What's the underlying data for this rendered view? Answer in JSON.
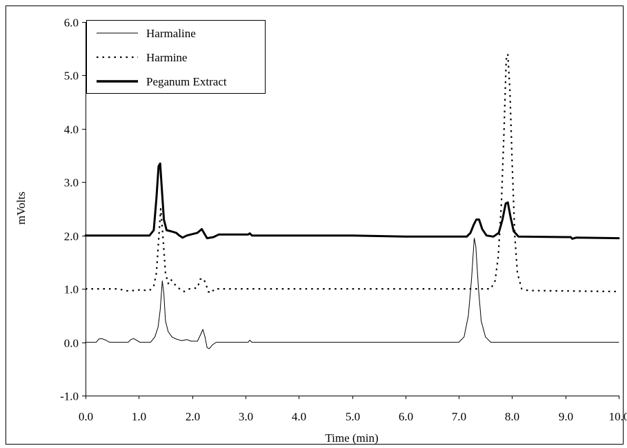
{
  "chart_data": {
    "type": "line",
    "title": "",
    "xlabel": "Time (min)",
    "ylabel": "mVolts",
    "xlim": [
      0.0,
      10.0
    ],
    "ylim": [
      -1.0,
      6.0
    ],
    "xticks": [
      0,
      1,
      2,
      3,
      4,
      5,
      6,
      7,
      8,
      9,
      10
    ],
    "xtick_labels": [
      "0.0",
      "1.0",
      "2.0",
      "3.0",
      "4.0",
      "5.0",
      "6.0",
      "7.0",
      "8.0",
      "9.0",
      "10.0"
    ],
    "yticks": [
      -1,
      0,
      1,
      2,
      3,
      4,
      5,
      6
    ],
    "ytick_labels": [
      "-1.0",
      "0.0",
      "1.0",
      "2.0",
      "3.0",
      "4.0",
      "5.0",
      "6.0"
    ],
    "grid": false,
    "legend_position": "top-left",
    "series": [
      {
        "name": "Harmaline",
        "style": "solid-thin",
        "color": "#000000",
        "points": [
          [
            0.0,
            0.0
          ],
          [
            0.2,
            0.0
          ],
          [
            0.25,
            0.06
          ],
          [
            0.3,
            0.07
          ],
          [
            0.38,
            0.04
          ],
          [
            0.45,
            0.0
          ],
          [
            0.8,
            0.0
          ],
          [
            0.85,
            0.05
          ],
          [
            0.9,
            0.07
          ],
          [
            0.97,
            0.03
          ],
          [
            1.02,
            0.0
          ],
          [
            1.22,
            0.0
          ],
          [
            1.3,
            0.1
          ],
          [
            1.36,
            0.28
          ],
          [
            1.4,
            0.6
          ],
          [
            1.44,
            1.15
          ],
          [
            1.47,
            0.9
          ],
          [
            1.5,
            0.4
          ],
          [
            1.55,
            0.2
          ],
          [
            1.62,
            0.1
          ],
          [
            1.7,
            0.06
          ],
          [
            1.8,
            0.03
          ],
          [
            1.9,
            0.05
          ],
          [
            1.98,
            0.02
          ],
          [
            2.1,
            0.02
          ],
          [
            2.16,
            0.15
          ],
          [
            2.2,
            0.24
          ],
          [
            2.24,
            0.1
          ],
          [
            2.28,
            -0.1
          ],
          [
            2.32,
            -0.12
          ],
          [
            2.38,
            -0.05
          ],
          [
            2.45,
            0.0
          ],
          [
            3.05,
            0.0
          ],
          [
            3.08,
            0.04
          ],
          [
            3.12,
            0.0
          ],
          [
            7.0,
            0.0
          ],
          [
            7.1,
            0.1
          ],
          [
            7.18,
            0.5
          ],
          [
            7.24,
            1.2
          ],
          [
            7.29,
            1.95
          ],
          [
            7.32,
            1.8
          ],
          [
            7.37,
            1.0
          ],
          [
            7.42,
            0.4
          ],
          [
            7.5,
            0.1
          ],
          [
            7.6,
            0.0
          ],
          [
            10.0,
            0.0
          ]
        ]
      },
      {
        "name": "Harmine",
        "style": "dotted",
        "color": "#000000",
        "points": [
          [
            0.0,
            1.0
          ],
          [
            0.6,
            1.0
          ],
          [
            0.8,
            0.96
          ],
          [
            1.0,
            0.98
          ],
          [
            1.2,
            0.97
          ],
          [
            1.28,
            1.05
          ],
          [
            1.33,
            1.3
          ],
          [
            1.37,
            1.9
          ],
          [
            1.41,
            2.5
          ],
          [
            1.45,
            2.0
          ],
          [
            1.5,
            1.3
          ],
          [
            1.55,
            1.1
          ],
          [
            1.6,
            1.18
          ],
          [
            1.65,
            1.1
          ],
          [
            1.72,
            1.05
          ],
          [
            1.78,
            0.98
          ],
          [
            1.85,
            0.95
          ],
          [
            1.95,
            1.0
          ],
          [
            2.1,
            1.02
          ],
          [
            2.15,
            1.18
          ],
          [
            2.2,
            1.2
          ],
          [
            2.25,
            1.12
          ],
          [
            2.3,
            0.95
          ],
          [
            2.35,
            0.92
          ],
          [
            2.42,
            1.0
          ],
          [
            2.6,
            1.0
          ],
          [
            7.6,
            1.0
          ],
          [
            7.68,
            1.15
          ],
          [
            7.74,
            1.6
          ],
          [
            7.8,
            2.6
          ],
          [
            7.85,
            4.0
          ],
          [
            7.89,
            5.3
          ],
          [
            7.92,
            5.4
          ],
          [
            7.96,
            4.7
          ],
          [
            8.0,
            3.4
          ],
          [
            8.05,
            2.0
          ],
          [
            8.1,
            1.3
          ],
          [
            8.18,
            1.0
          ],
          [
            8.3,
            0.97
          ],
          [
            10.0,
            0.95
          ]
        ]
      },
      {
        "name": "Peganum Extract",
        "style": "solid-thick",
        "color": "#000000",
        "points": [
          [
            0.0,
            2.0
          ],
          [
            1.2,
            2.0
          ],
          [
            1.28,
            2.1
          ],
          [
            1.33,
            2.7
          ],
          [
            1.37,
            3.3
          ],
          [
            1.4,
            3.35
          ],
          [
            1.43,
            2.9
          ],
          [
            1.47,
            2.3
          ],
          [
            1.52,
            2.1
          ],
          [
            1.6,
            2.08
          ],
          [
            1.7,
            2.05
          ],
          [
            1.76,
            2.0
          ],
          [
            1.82,
            1.96
          ],
          [
            1.9,
            2.0
          ],
          [
            2.1,
            2.05
          ],
          [
            2.18,
            2.12
          ],
          [
            2.22,
            2.05
          ],
          [
            2.28,
            1.95
          ],
          [
            2.4,
            1.97
          ],
          [
            2.5,
            2.02
          ],
          [
            3.05,
            2.02
          ],
          [
            3.08,
            2.04
          ],
          [
            3.12,
            2.0
          ],
          [
            5.0,
            2.0
          ],
          [
            6.0,
            1.98
          ],
          [
            7.15,
            1.98
          ],
          [
            7.22,
            2.05
          ],
          [
            7.28,
            2.2
          ],
          [
            7.33,
            2.3
          ],
          [
            7.38,
            2.3
          ],
          [
            7.44,
            2.12
          ],
          [
            7.52,
            2.0
          ],
          [
            7.65,
            1.98
          ],
          [
            7.75,
            2.05
          ],
          [
            7.82,
            2.3
          ],
          [
            7.88,
            2.6
          ],
          [
            7.92,
            2.62
          ],
          [
            7.97,
            2.35
          ],
          [
            8.03,
            2.08
          ],
          [
            8.12,
            1.98
          ],
          [
            9.0,
            1.97
          ],
          [
            9.1,
            1.97
          ],
          [
            9.13,
            1.94
          ],
          [
            9.2,
            1.96
          ],
          [
            10.0,
            1.95
          ]
        ]
      }
    ]
  }
}
